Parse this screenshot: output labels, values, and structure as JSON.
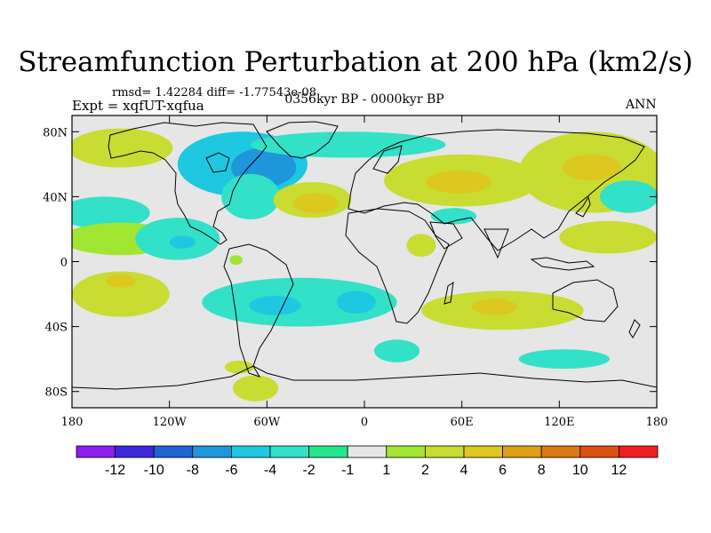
{
  "title": "Streamfunction Perturbation at 200 hPa (km2/s)",
  "stats_line": "rmsd= 1.42284 diff= -1.77543e-08",
  "expt_line": "Expt = xqfUT-xqfua",
  "period_line": "0356kyr BP - 0000kyr BP",
  "season": "ANN",
  "map": {
    "projection": "cylindrical equidistant",
    "lon_range": [
      -180,
      180
    ],
    "lat_range": [
      -90,
      90
    ],
    "background_color": "#e6e6e6",
    "x_ticks": [
      {
        "lon": -180,
        "label": "180"
      },
      {
        "lon": -120,
        "label": "120W"
      },
      {
        "lon": -60,
        "label": "60W"
      },
      {
        "lon": 0,
        "label": "0"
      },
      {
        "lon": 60,
        "label": "60E"
      },
      {
        "lon": 120,
        "label": "120E"
      },
      {
        "lon": 180,
        "label": "180"
      }
    ],
    "y_ticks": [
      {
        "lat": 80,
        "label": "80N"
      },
      {
        "lat": 40,
        "label": "40N"
      },
      {
        "lat": 0,
        "label": "0"
      },
      {
        "lat": -40,
        "label": "40S"
      },
      {
        "lat": -80,
        "label": "80S"
      }
    ],
    "anomalies": [
      {
        "lon": -150,
        "lat": 70,
        "rlon": 32,
        "rlat": 12,
        "level": 2
      },
      {
        "lon": -160,
        "lat": 30,
        "rlon": 28,
        "rlat": 10,
        "level": -2
      },
      {
        "lon": -150,
        "lat": 14,
        "rlon": 36,
        "rlat": 10,
        "level": 1
      },
      {
        "lon": -115,
        "lat": 14,
        "rlon": 26,
        "rlat": 13,
        "level": -2
      },
      {
        "lon": -112,
        "lat": 12,
        "rlon": 8,
        "rlat": 4,
        "level": -4
      },
      {
        "lon": -75,
        "lat": 60,
        "rlon": 40,
        "rlat": 20,
        "level": -4
      },
      {
        "lon": -62,
        "lat": 58,
        "rlon": 20,
        "rlat": 12,
        "level": -6
      },
      {
        "lon": -70,
        "lat": 40,
        "rlon": 18,
        "rlat": 14,
        "level": -2
      },
      {
        "lon": -10,
        "lat": 72,
        "rlon": 60,
        "rlat": 8,
        "level": -2
      },
      {
        "lon": -32,
        "lat": 38,
        "rlon": 24,
        "rlat": 11,
        "level": 2
      },
      {
        "lon": -30,
        "lat": 36,
        "rlon": 14,
        "rlat": 6,
        "level": 4
      },
      {
        "lon": -79,
        "lat": 1,
        "rlon": 4,
        "rlat": 3,
        "level": 1
      },
      {
        "lon": 60,
        "lat": 50,
        "rlon": 48,
        "rlat": 16,
        "level": 2
      },
      {
        "lon": 58,
        "lat": 49,
        "rlon": 20,
        "rlat": 7,
        "level": 4
      },
      {
        "lon": 140,
        "lat": 55,
        "rlon": 45,
        "rlat": 25,
        "level": 2
      },
      {
        "lon": 140,
        "lat": 58,
        "rlon": 18,
        "rlat": 8,
        "level": 4
      },
      {
        "lon": 163,
        "lat": 40,
        "rlon": 18,
        "rlat": 10,
        "level": -2
      },
      {
        "lon": 150,
        "lat": 15,
        "rlon": 30,
        "rlat": 10,
        "level": 2
      },
      {
        "lon": 55,
        "lat": 28,
        "rlon": 14,
        "rlat": 5,
        "level": -2
      },
      {
        "lon": 35,
        "lat": 10,
        "rlon": 9,
        "rlat": 7,
        "level": 2
      },
      {
        "lon": -150,
        "lat": -20,
        "rlon": 30,
        "rlat": 14,
        "level": 2
      },
      {
        "lon": -150,
        "lat": -12,
        "rlon": 9,
        "rlat": 4,
        "level": 4
      },
      {
        "lon": -40,
        "lat": -25,
        "rlon": 60,
        "rlat": 15,
        "level": -2
      },
      {
        "lon": -5,
        "lat": -25,
        "rlon": 12,
        "rlat": 7,
        "level": -4
      },
      {
        "lon": -55,
        "lat": -27,
        "rlon": 16,
        "rlat": 6,
        "level": -4
      },
      {
        "lon": 85,
        "lat": -30,
        "rlon": 50,
        "rlat": 12,
        "level": 2
      },
      {
        "lon": 80,
        "lat": -28,
        "rlon": 14,
        "rlat": 5,
        "level": 4
      },
      {
        "lon": 20,
        "lat": -55,
        "rlon": 14,
        "rlat": 7,
        "level": -2
      },
      {
        "lon": 123,
        "lat": -60,
        "rlon": 28,
        "rlat": 6,
        "level": -2
      },
      {
        "lon": -77,
        "lat": -65,
        "rlon": 9,
        "rlat": 4,
        "level": 2
      },
      {
        "lon": -67,
        "lat": -78,
        "rlon": 14,
        "rlat": 8,
        "level": 2
      }
    ]
  },
  "colorbar": {
    "colors": [
      "#8c1ef0",
      "#3c28dc",
      "#1e64d2",
      "#1e96dc",
      "#1ec8e1",
      "#32e1c8",
      "#23e68c",
      "#e6e6e6",
      "#a0e632",
      "#c8dc32",
      "#dcc81e",
      "#dca014",
      "#dc7814",
      "#dc5014",
      "#f01e1e"
    ],
    "labels": [
      "-12",
      "-10",
      "-8",
      "-6",
      "-4",
      "-2",
      "-1",
      "1",
      "2",
      "4",
      "6",
      "8",
      "10",
      "12"
    ]
  }
}
